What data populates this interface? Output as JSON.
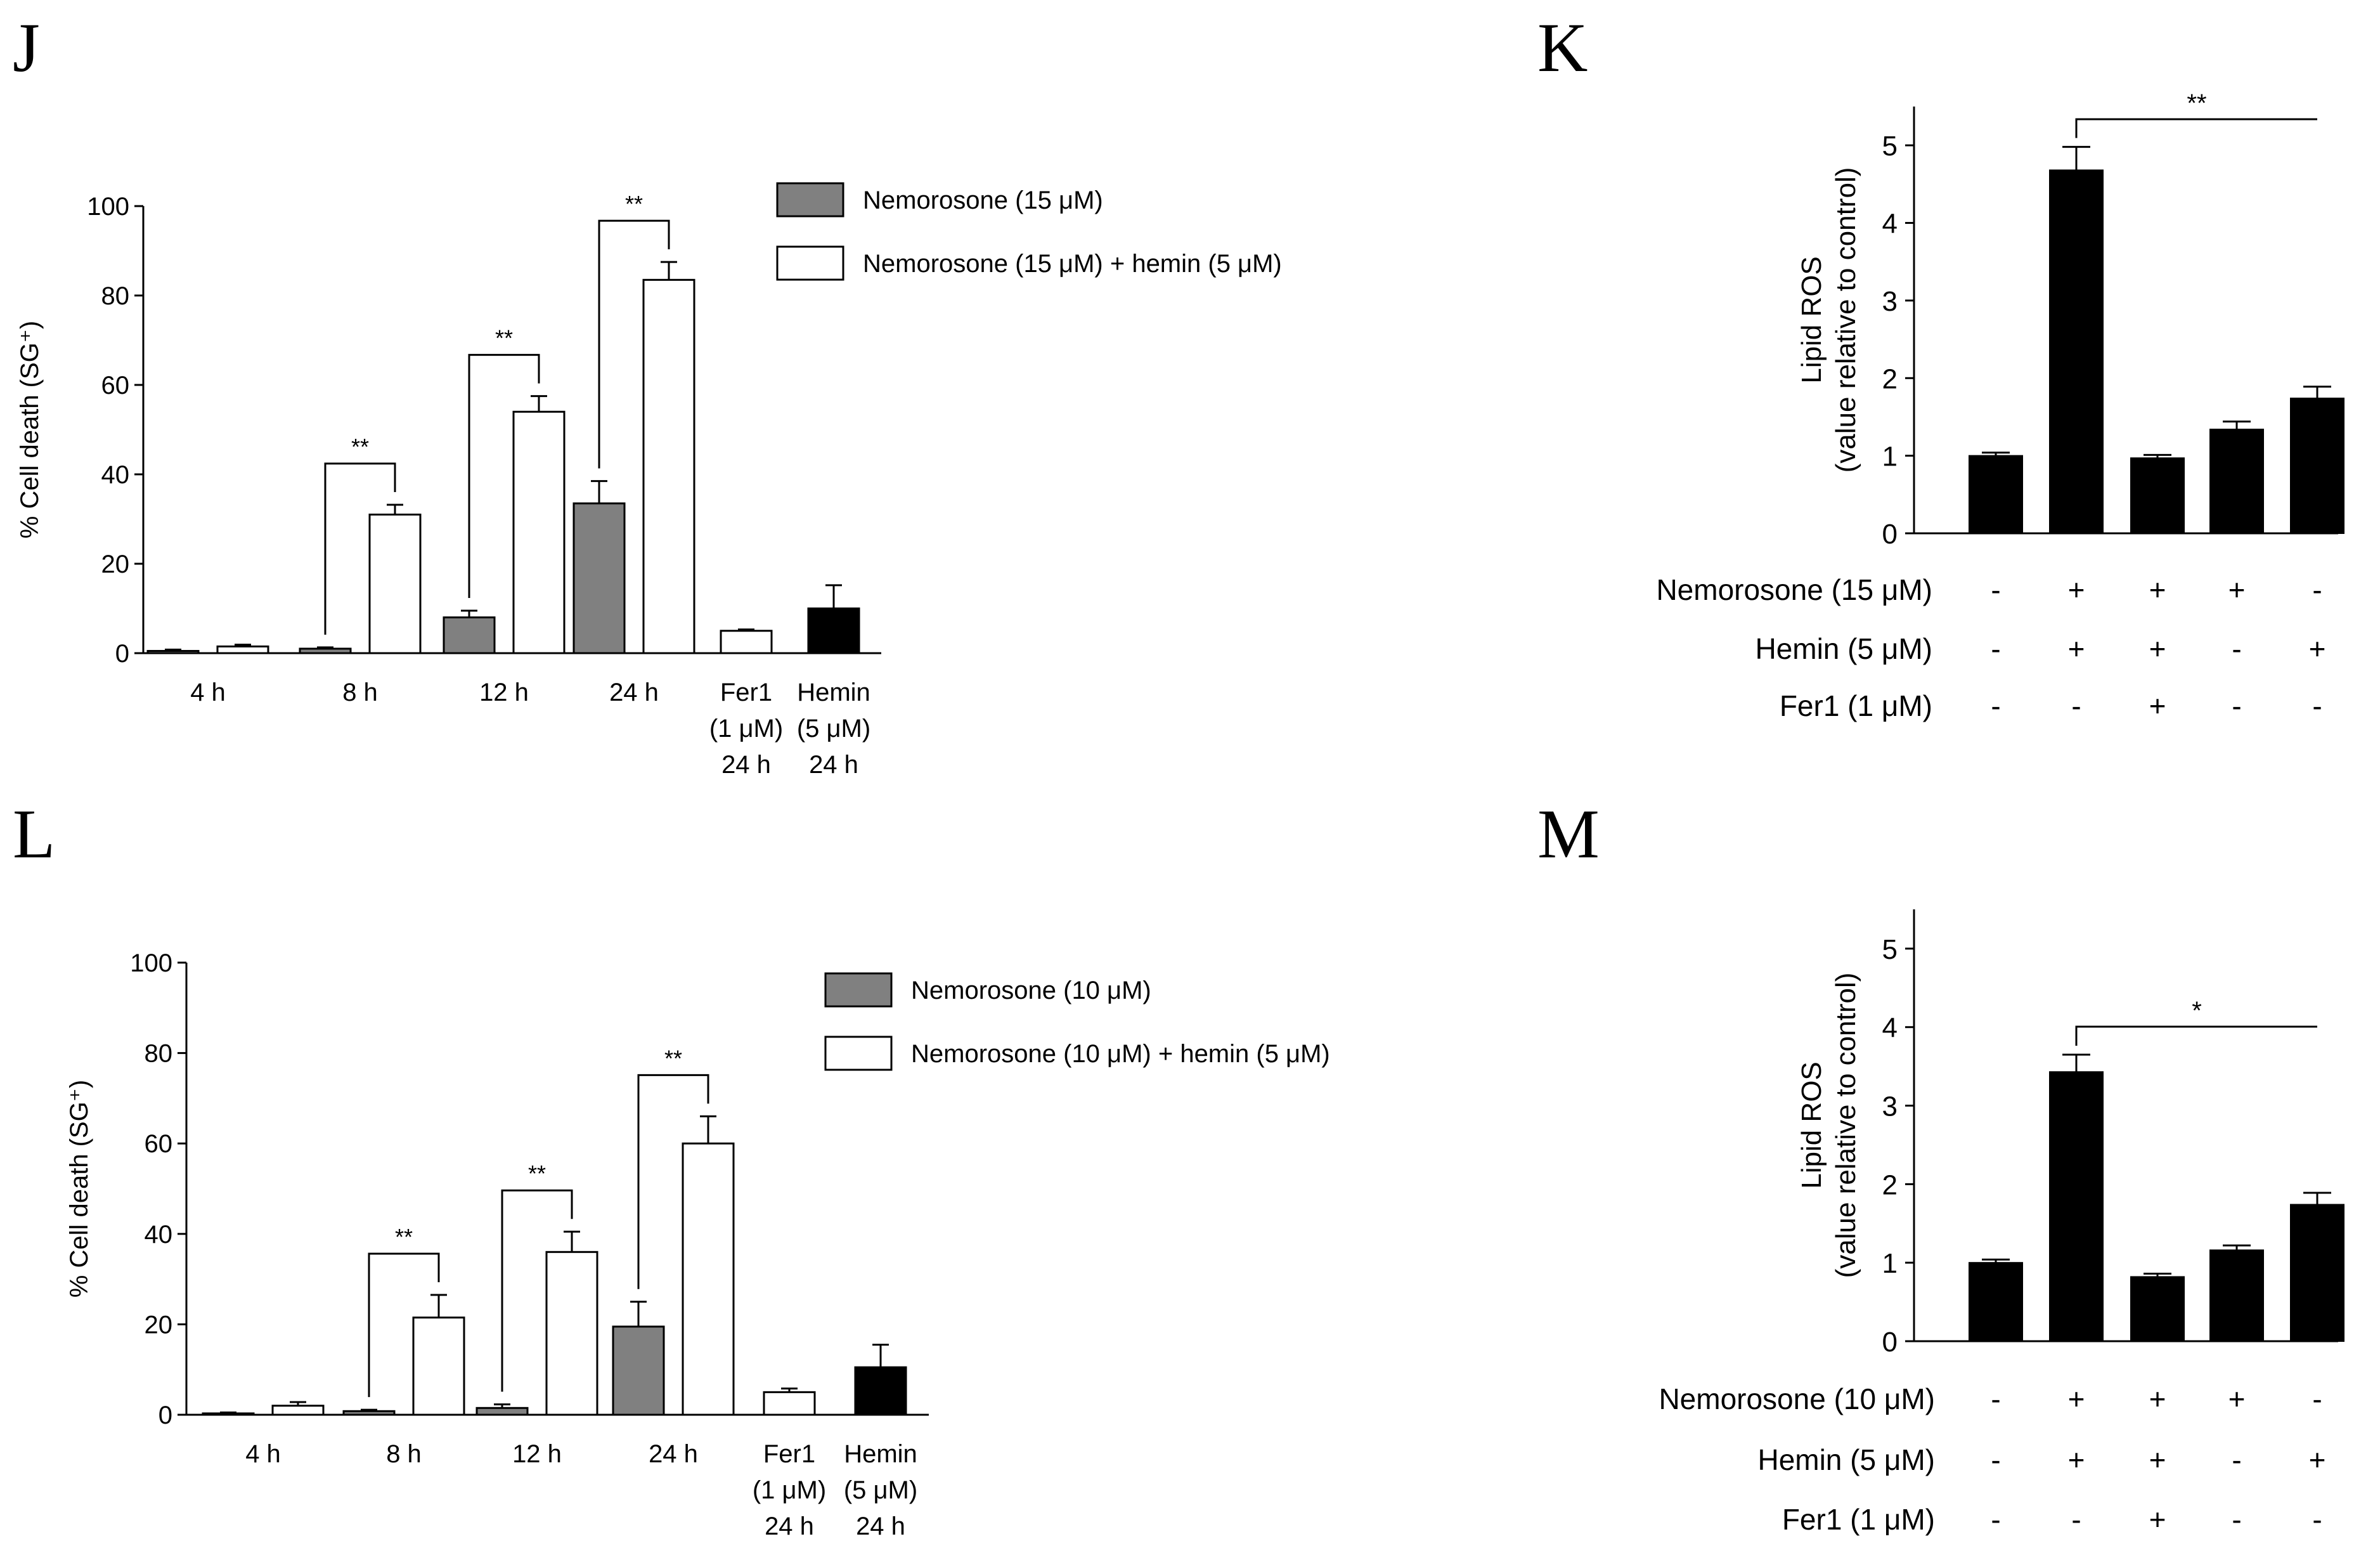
{
  "panels": [
    {
      "id": "J",
      "letter": "J"
    },
    {
      "id": "K",
      "letter": "K"
    },
    {
      "id": "L",
      "letter": "L"
    },
    {
      "id": "M",
      "letter": "M"
    }
  ],
  "chart_data": [
    {
      "panel": "J",
      "type": "bar",
      "ylabel": "% Cell death (SG⁺)",
      "ylim": [
        0,
        100
      ],
      "yticks": [
        0,
        20,
        40,
        60,
        80,
        100
      ],
      "groups": [
        {
          "label_lines": [
            "4 h"
          ],
          "bars": [
            {
              "value": 0.5,
              "error": 0.3,
              "fill": "#808080"
            },
            {
              "value": 1.5,
              "error": 0.4,
              "fill": "#ffffff"
            }
          ]
        },
        {
          "label_lines": [
            "8 h"
          ],
          "bars": [
            {
              "value": 1.0,
              "error": 0.3,
              "fill": "#808080"
            },
            {
              "value": 31,
              "error": 2.2,
              "fill": "#ffffff"
            }
          ],
          "sig": "**"
        },
        {
          "label_lines": [
            "12 h"
          ],
          "bars": [
            {
              "value": 8,
              "error": 1.5,
              "fill": "#808080"
            },
            {
              "value": 54,
              "error": 3.5,
              "fill": "#ffffff"
            }
          ],
          "sig": "**"
        },
        {
          "label_lines": [
            "24 h"
          ],
          "bars": [
            {
              "value": 33.5,
              "error": 5,
              "fill": "#808080"
            },
            {
              "value": 83.5,
              "error": 4,
              "fill": "#ffffff"
            }
          ],
          "sig": "**"
        },
        {
          "label_lines": [
            "Fer1",
            "(1 μM)",
            "24 h"
          ],
          "bars": [
            {
              "value": 5,
              "error": 0.3,
              "fill": "#ffffff"
            }
          ]
        },
        {
          "label_lines": [
            "Hemin",
            "(5 μM)",
            "24 h"
          ],
          "bars": [
            {
              "value": 10,
              "error": 5.2,
              "fill": "#000000"
            }
          ]
        }
      ],
      "legend": [
        {
          "label": "Nemorosone (15 μM)",
          "fill": "#808080"
        },
        {
          "label": "Nemorosone (15 μM) + hemin (5 μM)",
          "fill": "#ffffff"
        }
      ]
    },
    {
      "panel": "K",
      "type": "bar",
      "ylabel_lines": [
        "Lipid ROS",
        "(value relative to control)"
      ],
      "ylim": [
        0,
        5.5
      ],
      "yticks": [
        0,
        1,
        2,
        3,
        4,
        5
      ],
      "values": [
        1.0,
        4.68,
        0.97,
        1.34,
        1.74
      ],
      "errors": [
        0.04,
        0.3,
        0.04,
        0.1,
        0.15
      ],
      "sig_label": "**",
      "sig_between": [
        1,
        4
      ],
      "conditions": [
        {
          "label": "Nemorosone (15 μM)",
          "signs": [
            "-",
            "+",
            "+",
            "+",
            "-"
          ]
        },
        {
          "label": "Hemin (5 μM)",
          "signs": [
            "-",
            "+",
            "+",
            "-",
            "+"
          ]
        },
        {
          "label": "Fer1 (1 μM)",
          "signs": [
            "-",
            "-",
            "+",
            "-",
            "-"
          ]
        }
      ]
    },
    {
      "panel": "L",
      "type": "bar",
      "ylabel": "% Cell death (SG⁺)",
      "ylim": [
        0,
        100
      ],
      "yticks": [
        0,
        20,
        40,
        60,
        80,
        100
      ],
      "groups": [
        {
          "label_lines": [
            "4 h"
          ],
          "bars": [
            {
              "value": 0.3,
              "error": 0.2,
              "fill": "#808080"
            },
            {
              "value": 2,
              "error": 0.8,
              "fill": "#ffffff"
            }
          ]
        },
        {
          "label_lines": [
            "8 h"
          ],
          "bars": [
            {
              "value": 0.8,
              "error": 0.3,
              "fill": "#808080"
            },
            {
              "value": 21.5,
              "error": 5,
              "fill": "#ffffff"
            }
          ],
          "sig": "**"
        },
        {
          "label_lines": [
            "12 h"
          ],
          "bars": [
            {
              "value": 1.5,
              "error": 0.8,
              "fill": "#808080"
            },
            {
              "value": 36,
              "error": 4.5,
              "fill": "#ffffff"
            }
          ],
          "sig": "**"
        },
        {
          "label_lines": [
            "24 h"
          ],
          "bars": [
            {
              "value": 19.5,
              "error": 5.5,
              "fill": "#808080"
            },
            {
              "value": 60,
              "error": 6,
              "fill": "#ffffff"
            }
          ],
          "sig": "**"
        },
        {
          "label_lines": [
            "Fer1",
            "(1 μM)",
            "24 h"
          ],
          "bars": [
            {
              "value": 5,
              "error": 0.8,
              "fill": "#ffffff"
            }
          ]
        },
        {
          "label_lines": [
            "Hemin",
            "(5 μM)",
            "24 h"
          ],
          "bars": [
            {
              "value": 10.5,
              "error": 5,
              "fill": "#000000"
            }
          ]
        }
      ],
      "legend": [
        {
          "label": "Nemorosone (10 μM)",
          "fill": "#808080"
        },
        {
          "label": "Nemorosone (10 μM) + hemin (5 μM)",
          "fill": "#ffffff"
        }
      ]
    },
    {
      "panel": "M",
      "type": "bar",
      "ylabel_lines": [
        "Lipid ROS",
        "(value relative to control)"
      ],
      "ylim": [
        0,
        5.5
      ],
      "yticks": [
        0,
        1,
        2,
        3,
        4,
        5
      ],
      "values": [
        1.0,
        3.43,
        0.82,
        1.16,
        1.74
      ],
      "errors": [
        0.04,
        0.22,
        0.04,
        0.06,
        0.15
      ],
      "sig_label": "*",
      "sig_between": [
        1,
        4
      ],
      "conditions": [
        {
          "label": "Nemorosone (10 μM)",
          "signs": [
            "-",
            "+",
            "+",
            "+",
            "-"
          ]
        },
        {
          "label": "Hemin (5 μM)",
          "signs": [
            "-",
            "+",
            "+",
            "-",
            "+"
          ]
        },
        {
          "label": "Fer1 (1 μM)",
          "signs": [
            "-",
            "-",
            "+",
            "-",
            "-"
          ]
        }
      ]
    }
  ]
}
